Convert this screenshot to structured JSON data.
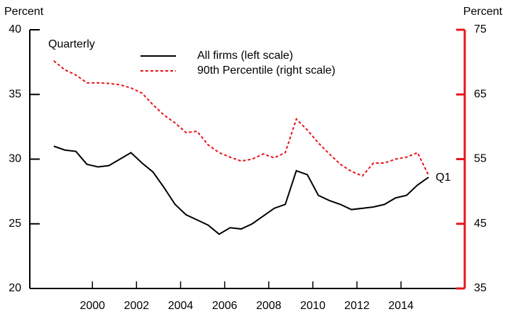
{
  "chart_data": {
    "type": "line",
    "left_axis_label": "Percent",
    "right_axis_label": "Percent",
    "annotations": [
      "Quarterly",
      "Q1"
    ],
    "x": [
      1998.25,
      1998.75,
      1999.25,
      1999.75,
      2000.25,
      2000.75,
      2001.25,
      2001.75,
      2002.25,
      2002.75,
      2003.25,
      2003.75,
      2004.25,
      2004.75,
      2005.25,
      2005.75,
      2006.25,
      2006.75,
      2007.25,
      2007.75,
      2008.25,
      2008.75,
      2009.25,
      2009.75,
      2010.25,
      2010.75,
      2011.25,
      2011.75,
      2012.25,
      2012.75,
      2013.25,
      2013.75,
      2014.25,
      2014.75,
      2015.25
    ],
    "series": [
      {
        "name": "All firms (left scale)",
        "color": "#000000",
        "dash": false,
        "axis": "y",
        "values": [
          31.0,
          30.7,
          30.6,
          29.6,
          29.4,
          29.5,
          30.0,
          30.5,
          29.7,
          29.0,
          27.8,
          26.5,
          25.7,
          25.3,
          24.9,
          24.2,
          24.7,
          24.6,
          25.0,
          25.6,
          26.2,
          26.5,
          29.1,
          28.8,
          27.2,
          26.8,
          26.5,
          26.1,
          26.2,
          26.3,
          26.5,
          27.0,
          27.2,
          28.0,
          28.6
        ]
      },
      {
        "name": "90th Percentile (right scale)",
        "color": "#e8141a",
        "dash": true,
        "axis": "y2",
        "values": [
          70.2,
          68.8,
          68.0,
          66.8,
          66.8,
          66.7,
          66.5,
          66.0,
          65.2,
          63.4,
          61.8,
          60.6,
          59.1,
          59.3,
          57.2,
          56.0,
          55.3,
          54.7,
          55.0,
          55.8,
          55.2,
          56.0,
          61.2,
          59.5,
          57.5,
          55.8,
          54.2,
          53.1,
          52.4,
          54.4,
          54.4,
          55.0,
          55.3,
          56.0,
          52.5
        ]
      }
    ],
    "xlim": [
      1997.16,
      2016.89
    ],
    "xticks": [
      2000,
      2002,
      2004,
      2006,
      2008,
      2010,
      2012,
      2014
    ],
    "ylim": [
      20,
      40
    ],
    "yticks": [
      20,
      25,
      30,
      35,
      40
    ],
    "y2lim": [
      35,
      75
    ],
    "y2ticks": [
      35,
      45,
      55,
      65,
      75
    ],
    "y2_color": "#e8141a"
  }
}
